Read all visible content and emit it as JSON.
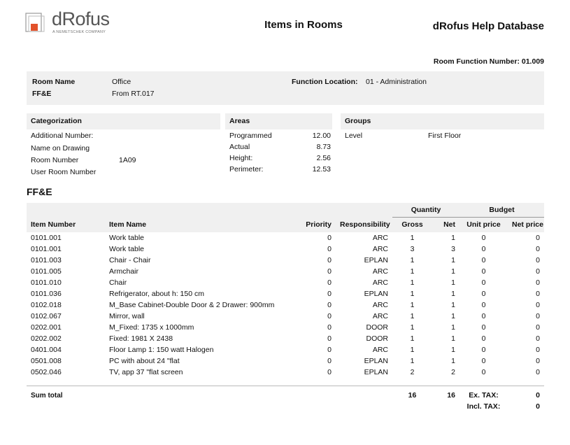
{
  "header": {
    "logo_name": "dRofus",
    "logo_tagline": "A NEMETSCHEK COMPANY",
    "title": "Items in Rooms",
    "database": "dRofus Help Database",
    "room_function_number": "Room Function Number: 01.009"
  },
  "room": {
    "name_label": "Room Name",
    "name": "Office",
    "ffe_label": "FF&E",
    "ffe": "From RT.017",
    "function_location_label": "Function Location:",
    "function_location": "01 - Administration"
  },
  "categorization": {
    "title": "Categorization",
    "rows": [
      {
        "label": "Additional Number:",
        "value": ""
      },
      {
        "label": "Name on Drawing",
        "value": ""
      },
      {
        "label": "Room Number",
        "value": "1A09"
      },
      {
        "label": "User Room Number",
        "value": ""
      }
    ]
  },
  "areas": {
    "title": "Areas",
    "rows": [
      {
        "label": "Programmed",
        "value": "12.00"
      },
      {
        "label": "Actual",
        "value": "8.73"
      },
      {
        "label": "Height:",
        "value": "2.56"
      },
      {
        "label": "Perimeter:",
        "value": "12.53"
      }
    ]
  },
  "groups": {
    "title": "Groups",
    "rows": [
      {
        "label": "Level",
        "value": "First Floor"
      }
    ]
  },
  "ffe": {
    "title": "FF&E",
    "group_quantity": "Quantity",
    "group_budget": "Budget",
    "columns": [
      "Item Number",
      "Item Name",
      "Priority",
      "Responsibility",
      "Gross",
      "Net",
      "Unit price",
      "Net price"
    ],
    "rows": [
      [
        "0101.001",
        "Work table",
        "0",
        "ARC",
        "1",
        "1",
        "0",
        "0"
      ],
      [
        "0101.001",
        "Work table",
        "0",
        "ARC",
        "3",
        "3",
        "0",
        "0"
      ],
      [
        "0101.003",
        "Chair - Chair",
        "0",
        "EPLAN",
        "1",
        "1",
        "0",
        "0"
      ],
      [
        "0101.005",
        "Armchair",
        "0",
        "ARC",
        "1",
        "1",
        "0",
        "0"
      ],
      [
        "0101.010",
        "Chair",
        "0",
        "ARC",
        "1",
        "1",
        "0",
        "0"
      ],
      [
        "0101.036",
        "Refrigerator, about h: 150 cm",
        "0",
        "EPLAN",
        "1",
        "1",
        "0",
        "0"
      ],
      [
        "0102.018",
        "M_Base Cabinet-Double Door & 2 Drawer: 900mm",
        "0",
        "ARC",
        "1",
        "1",
        "0",
        "0"
      ],
      [
        "0102.067",
        "Mirror, wall",
        "0",
        "ARC",
        "1",
        "1",
        "0",
        "0"
      ],
      [
        "0202.001",
        "M_Fixed: 1735 x 1000mm",
        "0",
        "DOOR",
        "1",
        "1",
        "0",
        "0"
      ],
      [
        "0202.002",
        "Fixed: 1981 X 2438",
        "0",
        "DOOR",
        "1",
        "1",
        "0",
        "0"
      ],
      [
        "0401.004",
        "Floor Lamp 1: 150 watt Halogen",
        "0",
        "ARC",
        "1",
        "1",
        "0",
        "0"
      ],
      [
        "0501.008",
        "PC with about 24 \"flat",
        "0",
        "EPLAN",
        "1",
        "1",
        "0",
        "0"
      ],
      [
        "0502.046",
        "TV, app 37 \"flat screen",
        "0",
        "EPLAN",
        "2",
        "2",
        "0",
        "0"
      ]
    ],
    "sum_label": "Sum total",
    "sum_gross": "16",
    "sum_net": "16",
    "ex_tax_label": "Ex. TAX:",
    "ex_tax": "0",
    "incl_tax_label": "Incl. TAX:",
    "incl_tax": "0"
  }
}
